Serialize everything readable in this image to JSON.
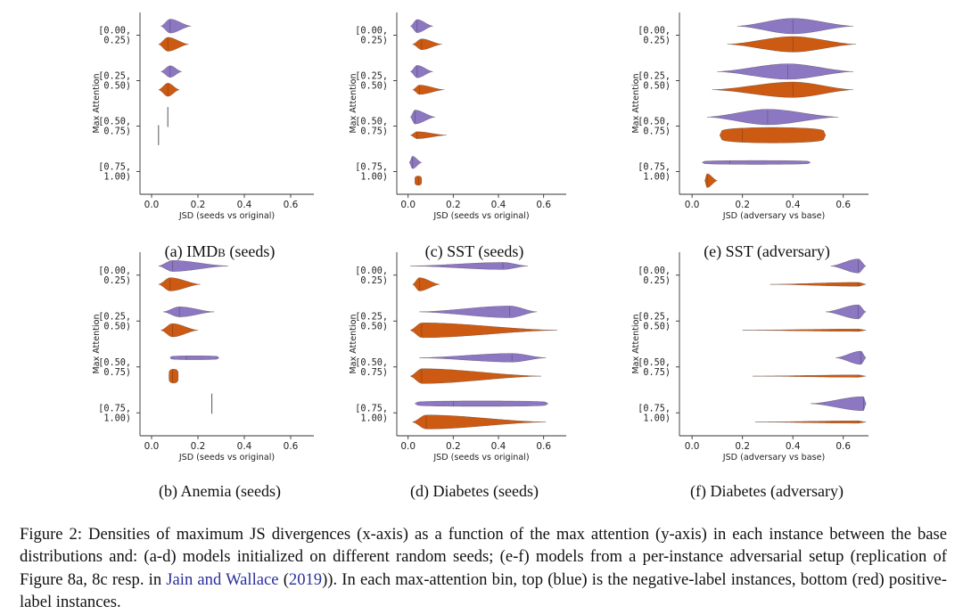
{
  "colors": {
    "negative": "#8b77c2",
    "positive": "#cc5a12",
    "axis": "#333333"
  },
  "y_axis_label": "Max Attention",
  "bin_labels": [
    [
      "[0.00,",
      "0.25)"
    ],
    [
      "[0.25,",
      "0.50)"
    ],
    [
      "[0.50,",
      "0.75)"
    ],
    [
      "[0.75,",
      "1.00)"
    ]
  ],
  "chart_data": [
    {
      "id": "a",
      "type": "violin",
      "caption_prefix": "(a) ",
      "caption_main": "IMD",
      "caption_sc": "b",
      "caption_suffix": " (seeds)",
      "xlabel": "JSD (seeds vs original)",
      "xlim": [
        -0.05,
        0.7
      ],
      "xticks": [
        0.0,
        0.2,
        0.4,
        0.6
      ],
      "tick_labels": [
        "0.0",
        "0.2",
        "0.4",
        "0.6"
      ],
      "ylabel": "Max Attention",
      "bins": [
        {
          "neg": {
            "min": 0.04,
            "max": 0.17,
            "peak": 0.08,
            "width": 0.9
          },
          "pos": {
            "min": 0.03,
            "max": 0.16,
            "peak": 0.07,
            "width": 0.9
          }
        },
        {
          "neg": {
            "min": 0.04,
            "max": 0.13,
            "peak": 0.08,
            "width": 0.75
          },
          "pos": {
            "min": 0.03,
            "max": 0.12,
            "peak": 0.07,
            "width": 0.85
          }
        },
        {
          "neg": {
            "min": 0.07,
            "max": 0.075,
            "peak": 0.072,
            "width": 0.02
          },
          "pos": {
            "min": 0.03,
            "max": 0.035,
            "peak": 0.032,
            "width": 0.02
          }
        },
        null
      ]
    },
    {
      "id": "b",
      "type": "violin",
      "caption_prefix": "(b) ",
      "caption_main": "Anemia (seeds)",
      "caption_sc": "",
      "caption_suffix": "",
      "xlabel": "JSD (seeds vs original)",
      "xlim": [
        -0.05,
        0.7
      ],
      "xticks": [
        0.0,
        0.2,
        0.4,
        0.6
      ],
      "tick_labels": [
        "0.0",
        "0.2",
        "0.4",
        "0.6"
      ],
      "ylabel": "Max Attention",
      "bins": [
        {
          "neg": {
            "min": 0.03,
            "max": 0.33,
            "peak": 0.09,
            "width": 0.7
          },
          "pos": {
            "min": 0.03,
            "max": 0.21,
            "peak": 0.08,
            "width": 0.85
          }
        },
        {
          "neg": {
            "min": 0.05,
            "max": 0.27,
            "peak": 0.12,
            "width": 0.65
          },
          "pos": {
            "min": 0.04,
            "max": 0.2,
            "peak": 0.09,
            "width": 0.85
          }
        },
        {
          "neg": {
            "min": 0.08,
            "max": 0.29,
            "peak": 0.15,
            "width": 0.25,
            "flat": true
          },
          "pos": {
            "min": 0.075,
            "max": 0.115,
            "peak": 0.09,
            "width": 0.9,
            "flat": true
          }
        },
        {
          "neg": {
            "min": 0.26,
            "max": 0.265,
            "peak": 0.262,
            "width": 0.02
          },
          "pos": null
        }
      ]
    },
    {
      "id": "c",
      "type": "violin",
      "caption_prefix": "(c) ",
      "caption_main": "SST (seeds)",
      "caption_sc": "",
      "caption_suffix": "",
      "xlabel": "JSD (seeds vs original)",
      "xlim": [
        -0.05,
        0.7
      ],
      "xticks": [
        0.0,
        0.2,
        0.4,
        0.6
      ],
      "tick_labels": [
        "0.0",
        "0.2",
        "0.4",
        "0.6"
      ],
      "ylabel": "Max Attention",
      "bins": [
        {
          "neg": {
            "min": 0.01,
            "max": 0.11,
            "peak": 0.04,
            "width": 0.85
          },
          "pos": {
            "min": 0.02,
            "max": 0.15,
            "peak": 0.06,
            "width": 0.7
          }
        },
        {
          "neg": {
            "min": 0.01,
            "max": 0.11,
            "peak": 0.04,
            "width": 0.8
          },
          "pos": {
            "min": 0.02,
            "max": 0.16,
            "peak": 0.05,
            "width": 0.6
          }
        },
        {
          "neg": {
            "min": 0.01,
            "max": 0.12,
            "peak": 0.03,
            "width": 0.9
          },
          "pos": {
            "min": 0.01,
            "max": 0.17,
            "peak": 0.04,
            "width": 0.45
          }
        },
        {
          "neg": {
            "min": 0.005,
            "max": 0.06,
            "peak": 0.02,
            "width": 0.8
          },
          "pos": {
            "min": 0.03,
            "max": 0.06,
            "peak": 0.045,
            "width": 0.6,
            "flat": true
          }
        }
      ]
    },
    {
      "id": "d",
      "type": "violin",
      "caption_prefix": "(d) ",
      "caption_main": "Diabetes (seeds)",
      "caption_sc": "",
      "caption_suffix": "",
      "xlabel": "JSD (seeds vs original)",
      "xlim": [
        -0.05,
        0.7
      ],
      "xticks": [
        0.0,
        0.2,
        0.4,
        0.6
      ],
      "tick_labels": [
        "0.0",
        "0.2",
        "0.4",
        "0.6"
      ],
      "ylabel": "Max Attention",
      "bins": [
        {
          "neg": {
            "min": 0.01,
            "max": 0.53,
            "peak": 0.42,
            "width": 0.45
          },
          "pos": {
            "min": 0.02,
            "max": 0.14,
            "peak": 0.05,
            "width": 0.85
          }
        },
        {
          "neg": {
            "min": 0.05,
            "max": 0.57,
            "peak": 0.45,
            "width": 0.75
          },
          "pos": {
            "min": 0.01,
            "max": 0.66,
            "peak": 0.06,
            "width": 0.95
          }
        },
        {
          "neg": {
            "min": 0.05,
            "max": 0.61,
            "peak": 0.46,
            "width": 0.55
          },
          "pos": {
            "min": 0.01,
            "max": 0.59,
            "peak": 0.06,
            "width": 0.95
          }
        },
        {
          "neg": {
            "min": 0.03,
            "max": 0.62,
            "peak": 0.2,
            "width": 0.35,
            "flat": true
          },
          "pos": {
            "min": 0.02,
            "max": 0.61,
            "peak": 0.08,
            "width": 0.9
          }
        }
      ]
    },
    {
      "id": "e",
      "type": "violin",
      "caption_prefix": "(e) ",
      "caption_main": "SST (adversary)",
      "caption_sc": "",
      "caption_suffix": "",
      "xlabel": "JSD (adversary vs base)",
      "xlim": [
        -0.05,
        0.7
      ],
      "xticks": [
        0.0,
        0.2,
        0.4,
        0.6
      ],
      "tick_labels": [
        "0.0",
        "0.2",
        "0.4",
        "0.6"
      ],
      "ylabel": "Max Attention",
      "bins": [
        {
          "neg": {
            "min": 0.18,
            "max": 0.64,
            "peak": 0.4,
            "width": 1.0
          },
          "pos": {
            "min": 0.14,
            "max": 0.65,
            "peak": 0.4,
            "width": 1.0
          }
        },
        {
          "neg": {
            "min": 0.1,
            "max": 0.64,
            "peak": 0.38,
            "width": 1.0
          },
          "pos": {
            "min": 0.08,
            "max": 0.64,
            "peak": 0.4,
            "width": 1.0
          }
        },
        {
          "neg": {
            "min": 0.06,
            "max": 0.58,
            "peak": 0.3,
            "width": 1.0
          },
          "pos": {
            "min": 0.11,
            "max": 0.53,
            "peak": 0.2,
            "width": 1.0,
            "flat": true
          }
        },
        {
          "neg": {
            "min": 0.04,
            "max": 0.47,
            "peak": 0.15,
            "width": 0.25,
            "flat": true
          },
          "pos": {
            "min": 0.05,
            "max": 0.1,
            "peak": 0.06,
            "width": 0.9
          }
        }
      ]
    },
    {
      "id": "f",
      "type": "violin",
      "caption_prefix": "(f) ",
      "caption_main": "Diabetes (adversary)",
      "caption_sc": "",
      "caption_suffix": "",
      "xlabel": "JSD (adversary vs base)",
      "xlim": [
        -0.05,
        0.7
      ],
      "xticks": [
        0.0,
        0.2,
        0.4,
        0.6
      ],
      "tick_labels": [
        "0.0",
        "0.2",
        "0.4",
        "0.6"
      ],
      "ylabel": "Max Attention",
      "bins": [
        {
          "neg": {
            "min": 0.55,
            "max": 0.69,
            "peak": 0.66,
            "width": 0.9
          },
          "pos": {
            "min": 0.31,
            "max": 0.69,
            "peak": 0.66,
            "width": 0.25
          }
        },
        {
          "neg": {
            "min": 0.53,
            "max": 0.69,
            "peak": 0.66,
            "width": 0.9
          },
          "pos": {
            "min": 0.2,
            "max": 0.69,
            "peak": 0.66,
            "width": 0.15
          }
        },
        {
          "neg": {
            "min": 0.57,
            "max": 0.69,
            "peak": 0.67,
            "width": 0.85
          },
          "pos": {
            "min": 0.24,
            "max": 0.69,
            "peak": 0.66,
            "width": 0.15
          }
        },
        {
          "neg": {
            "min": 0.47,
            "max": 0.69,
            "peak": 0.68,
            "width": 0.9
          },
          "pos": {
            "min": 0.25,
            "max": 0.69,
            "peak": 0.66,
            "width": 0.15
          }
        }
      ]
    }
  ],
  "caption": {
    "before_cite": "Figure 2: Densities of maximum JS divergences (x-axis) as a function of the max attention (y-axis) in each instance between the base distributions and: (a-d) models initialized on different random seeds; (e-f) models from a per-instance adversarial setup (replication of Figure 8a, 8c resp. in ",
    "cite_authors": "Jain and Wallace",
    "cite_open": " (",
    "cite_year": "2019",
    "after_cite": ")). In each max-attention bin, top (blue) is the negative-label instances, bottom (red) positive-label instances."
  }
}
